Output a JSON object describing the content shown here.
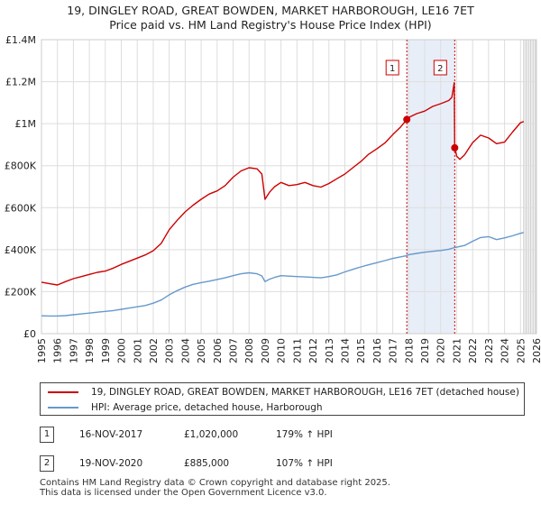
{
  "chart_data": {
    "type": "line",
    "title": "19, DINGLEY ROAD, GREAT BOWDEN, MARKET HARBOROUGH, LE16 7ET",
    "subtitle": "Price paid vs. HM Land Registry's House Price Index (HPI)",
    "xlabel": "",
    "ylabel": "",
    "xlim": [
      1995,
      2026
    ],
    "ylim": [
      0,
      1400000
    ],
    "x_ticks": [
      "1995",
      "1996",
      "1997",
      "1998",
      "1999",
      "2000",
      "2001",
      "2002",
      "2003",
      "2004",
      "2005",
      "2006",
      "2007",
      "2008",
      "2009",
      "2010",
      "2011",
      "2012",
      "2013",
      "2014",
      "2015",
      "2016",
      "2017",
      "2018",
      "2019",
      "2020",
      "2021",
      "2022",
      "2023",
      "2024",
      "2025",
      "2026"
    ],
    "y_ticks": [
      {
        "value": 0,
        "label": "£0"
      },
      {
        "value": 200000,
        "label": "£200K"
      },
      {
        "value": 400000,
        "label": "£400K"
      },
      {
        "value": 600000,
        "label": "£600K"
      },
      {
        "value": 800000,
        "label": "£800K"
      },
      {
        "value": 1000000,
        "label": "£1M"
      },
      {
        "value": 1200000,
        "label": "£1.2M"
      },
      {
        "value": 1400000,
        "label": "£1.4M"
      }
    ],
    "grid": true,
    "series": [
      {
        "name": "19, DINGLEY ROAD, GREAT BOWDEN, MARKET HARBOROUGH, LE16 7ET (detached house)",
        "color": "#cc0000",
        "x": [
          1995,
          1995.5,
          1996,
          1996.5,
          1997,
          1997.5,
          1998,
          1998.5,
          1999,
          1999.5,
          2000,
          2000.5,
          2001,
          2001.5,
          2002,
          2002.5,
          2003,
          2003.5,
          2004,
          2004.5,
          2005,
          2005.5,
          2006,
          2006.5,
          2007,
          2007.5,
          2008,
          2008.5,
          2008.8,
          2009,
          2009.3,
          2009.6,
          2010,
          2010.5,
          2011,
          2011.5,
          2012,
          2012.5,
          2013,
          2013.5,
          2014,
          2014.5,
          2015,
          2015.5,
          2016,
          2016.5,
          2017,
          2017.5,
          2017.88,
          2018,
          2018.5,
          2019,
          2019.5,
          2020,
          2020.5,
          2020.7,
          2020.85,
          2020.88,
          2021,
          2021.2,
          2021.5,
          2022,
          2022.5,
          2023,
          2023.5,
          2024,
          2024.5,
          2025,
          2025.2
        ],
        "values": [
          245000,
          238000,
          232000,
          248000,
          262000,
          272000,
          282000,
          292000,
          298000,
          312000,
          330000,
          345000,
          360000,
          375000,
          395000,
          430000,
          495000,
          540000,
          580000,
          612000,
          640000,
          665000,
          680000,
          705000,
          745000,
          775000,
          790000,
          785000,
          760000,
          640000,
          675000,
          700000,
          720000,
          705000,
          710000,
          720000,
          705000,
          698000,
          715000,
          738000,
          760000,
          790000,
          820000,
          855000,
          880000,
          908000,
          948000,
          985000,
          1020000,
          1030000,
          1048000,
          1060000,
          1082000,
          1095000,
          1110000,
          1125000,
          1195000,
          885000,
          845000,
          830000,
          852000,
          910000,
          945000,
          932000,
          905000,
          912000,
          960000,
          1005000,
          1010000
        ]
      },
      {
        "name": "HPI: Average price, detached house, Harborough",
        "color": "#6699cc",
        "x": [
          1995,
          1995.5,
          1996,
          1996.5,
          1997,
          1997.5,
          1998,
          1998.5,
          1999,
          1999.5,
          2000,
          2000.5,
          2001,
          2001.5,
          2002,
          2002.5,
          2003,
          2003.5,
          2004,
          2004.5,
          2005,
          2005.5,
          2006,
          2006.5,
          2007,
          2007.5,
          2008,
          2008.5,
          2008.8,
          2009,
          2009.3,
          2009.6,
          2010,
          2010.5,
          2011,
          2011.5,
          2012,
          2012.5,
          2013,
          2013.5,
          2014,
          2014.5,
          2015,
          2015.5,
          2016,
          2016.5,
          2017,
          2017.5,
          2017.88,
          2018,
          2018.5,
          2019,
          2019.5,
          2020,
          2020.5,
          2020.88,
          2021,
          2021.5,
          2022,
          2022.5,
          2023,
          2023.5,
          2024,
          2024.5,
          2025,
          2025.2
        ],
        "values": [
          85000,
          84000,
          84000,
          86000,
          90000,
          94000,
          98000,
          102000,
          106000,
          110000,
          116000,
          122000,
          128000,
          134000,
          145000,
          160000,
          185000,
          205000,
          222000,
          235000,
          243000,
          250000,
          258000,
          266000,
          276000,
          285000,
          290000,
          285000,
          275000,
          248000,
          260000,
          268000,
          276000,
          274000,
          272000,
          270000,
          268000,
          266000,
          272000,
          280000,
          294000,
          306000,
          318000,
          328000,
          338000,
          348000,
          358000,
          366000,
          372000,
          376000,
          382000,
          388000,
          392000,
          396000,
          402000,
          410000,
          412000,
          420000,
          440000,
          458000,
          462000,
          448000,
          456000,
          466000,
          478000,
          482000
        ]
      }
    ],
    "markers": [
      {
        "label": "1",
        "x": 2017.88,
        "value": 1020000
      },
      {
        "label": "2",
        "x": 2020.88,
        "value": 885000
      }
    ]
  },
  "legend": {
    "red_label": "19, DINGLEY ROAD, GREAT BOWDEN, MARKET HARBOROUGH, LE16 7ET (detached house)",
    "blue_label": "HPI: Average price, detached house, Harborough"
  },
  "transactions": [
    {
      "num": "1",
      "date": "16-NOV-2017",
      "price": "£1,020,000",
      "hpi": "179% ↑ HPI"
    },
    {
      "num": "2",
      "date": "19-NOV-2020",
      "price": "£885,000",
      "hpi": "107% ↑ HPI"
    }
  ],
  "footer": {
    "line1": "Contains HM Land Registry data © Crown copyright and database right 2025.",
    "line2": "This data is licensed under the Open Government Licence v3.0."
  },
  "colors": {
    "red": "#cc0000",
    "blue": "#6699cc",
    "grid": "#dddddd",
    "highlight": "#e8eef8",
    "future": "#dddddd"
  }
}
